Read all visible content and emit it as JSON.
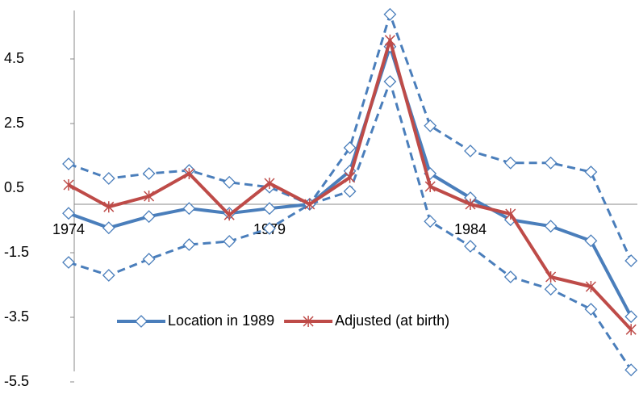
{
  "chart_data": {
    "type": "line",
    "categories": [
      "1974",
      null,
      null,
      null,
      null,
      "1979",
      null,
      null,
      null,
      null,
      "1984",
      null,
      null,
      null,
      null
    ],
    "ylim": [
      -5.5,
      6
    ],
    "yticks": [
      -5.5,
      -3.5,
      -1.5,
      0.5,
      2.5,
      4.5
    ],
    "series": [
      {
        "color": "#4a7ebb",
        "dashed": true,
        "marker": "diamond",
        "values": [
          1.25,
          0.8,
          0.95,
          1.05,
          0.68,
          0.53,
          0.0,
          1.75,
          5.88,
          2.43,
          1.65,
          1.28,
          1.28,
          1.0,
          -1.75
        ]
      },
      {
        "color": "#4a7ebb",
        "dashed": true,
        "marker": "diamond",
        "values": [
          -1.8,
          -2.2,
          -1.7,
          -1.25,
          -1.15,
          -0.75,
          0.0,
          0.4,
          3.8,
          -0.53,
          -1.3,
          -2.25,
          -2.63,
          -3.25,
          -5.13
        ]
      },
      {
        "name": "Location in 1989",
        "color": "#4a7ebb",
        "dashed": false,
        "marker": "diamond",
        "values": [
          -0.28,
          -0.73,
          -0.38,
          -0.13,
          -0.28,
          -0.13,
          0.0,
          1.03,
          4.88,
          0.95,
          0.2,
          -0.48,
          -0.68,
          -1.13,
          -3.48
        ]
      },
      {
        "name": "Adjusted (at birth)",
        "color": "#be4b48",
        "dashed": false,
        "marker": "star",
        "values": [
          0.6,
          -0.08,
          0.25,
          0.95,
          -0.33,
          0.65,
          0.0,
          0.83,
          5.08,
          0.55,
          0.0,
          -0.3,
          -2.25,
          -2.55,
          -3.88
        ]
      }
    ]
  }
}
